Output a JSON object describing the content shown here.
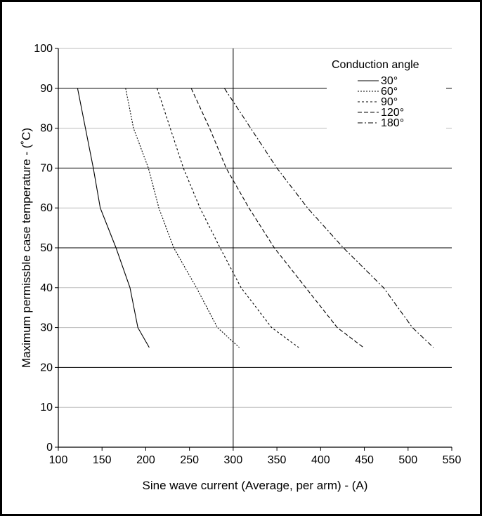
{
  "chart_data": {
    "type": "line",
    "title": "",
    "xlabel": "Sine wave current (Average, per arm) - (A)",
    "ylabel": "Maximum permissble case temperature - (˚C)",
    "xlim": [
      100,
      550
    ],
    "ylim": [
      0,
      100
    ],
    "xticks": [
      100,
      150,
      200,
      250,
      300,
      350,
      400,
      450,
      500,
      550
    ],
    "yticks": [
      0,
      10,
      20,
      30,
      40,
      50,
      60,
      70,
      80,
      90,
      100
    ],
    "grid": {
      "major_y": [
        20,
        50,
        70,
        90
      ],
      "minor_y": [
        10,
        30,
        40,
        60,
        80,
        100
      ],
      "major_x": [
        300
      ]
    },
    "legend": {
      "title": "Conduction angle",
      "position": "top-right"
    },
    "series": [
      {
        "name": "30°",
        "dash": "solid",
        "points": [
          [
            122,
            90
          ],
          [
            131,
            80
          ],
          [
            140,
            70
          ],
          [
            148,
            60
          ],
          [
            166,
            50
          ],
          [
            182,
            40
          ],
          [
            191,
            30
          ],
          [
            204,
            25
          ]
        ]
      },
      {
        "name": "60°",
        "dash": "dot",
        "points": [
          [
            177,
            90
          ],
          [
            186,
            80
          ],
          [
            203,
            70
          ],
          [
            215,
            60
          ],
          [
            232,
            50
          ],
          [
            258,
            40
          ],
          [
            282,
            30
          ],
          [
            307,
            25
          ]
        ]
      },
      {
        "name": "90°",
        "dash": "dash-short",
        "points": [
          [
            213,
            90
          ],
          [
            228,
            80
          ],
          [
            243,
            70
          ],
          [
            262,
            60
          ],
          [
            285,
            50
          ],
          [
            309,
            40
          ],
          [
            344,
            30
          ],
          [
            375,
            25
          ]
        ]
      },
      {
        "name": "120°",
        "dash": "dash",
        "points": [
          [
            252,
            90
          ],
          [
            273,
            80
          ],
          [
            292,
            70
          ],
          [
            318,
            60
          ],
          [
            347,
            50
          ],
          [
            383,
            40
          ],
          [
            419,
            30
          ],
          [
            449,
            25
          ]
        ]
      },
      {
        "name": "180°",
        "dash": "dash-dot",
        "points": [
          [
            290,
            90
          ],
          [
            320,
            80
          ],
          [
            350,
            70
          ],
          [
            385,
            60
          ],
          [
            426,
            50
          ],
          [
            472,
            40
          ],
          [
            505,
            30
          ],
          [
            529,
            25
          ]
        ]
      }
    ]
  }
}
